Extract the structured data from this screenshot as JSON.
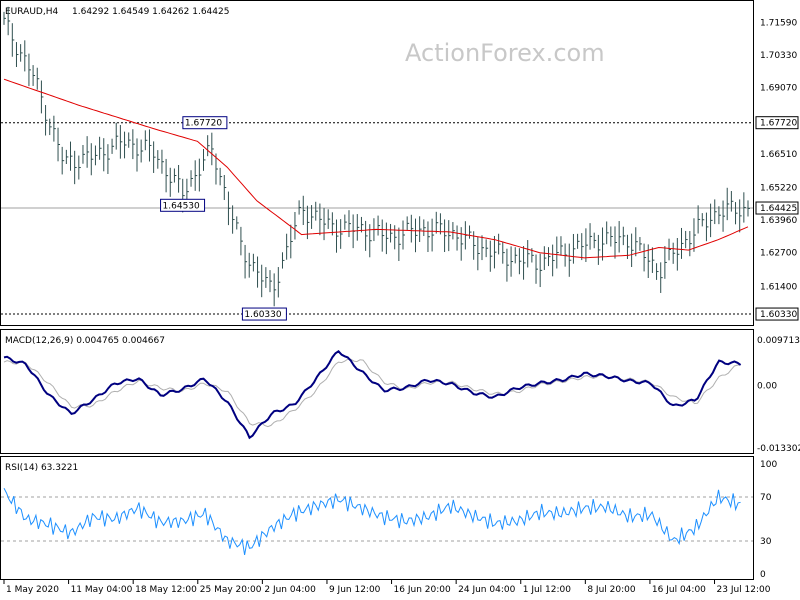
{
  "header": {
    "symbol": "EURAUD,H4",
    "ohlc": "1.64292 1.64549 1.64262 1.64425",
    "watermark": "ActionForex.com"
  },
  "chart_data": [
    {
      "type": "line",
      "title": "EURAUD,H4 1.64292 1.64549 1.64262 1.64425",
      "ylim": [
        1.601,
        1.7215
      ],
      "x_tick_labels": [
        "1 May 2020",
        "11 May 04:00",
        "18 May 12:00",
        "25 May 20:00",
        "2 Jun 04:00",
        "9 Jun 12:00",
        "16 Jun 20:00",
        "24 Jun 04:00",
        "1 Jul 12:00",
        "8 Jul 20:00",
        "16 Jul 04:00",
        "23 Jul 12:00"
      ],
      "y_tick_labels": [
        "1.71590",
        "1.70330",
        "1.69070",
        "1.67720",
        "1.66510",
        "1.65220",
        "1.64425",
        "1.63960",
        "1.62700",
        "1.61400",
        "1.60330",
        "1.60330"
      ],
      "current_price": 1.64425,
      "current_price_label": "1.64425",
      "horizontal_levels": [
        1.6772,
        1.6033
      ],
      "annotations": [
        {
          "text": "1.67720",
          "x": 0.27,
          "y": 1.6772
        },
        {
          "text": "1.64530",
          "x": 0.24,
          "y": 1.6453
        },
        {
          "text": "1.60330",
          "x": 0.35,
          "y": 1.6033
        }
      ],
      "series": [
        {
          "type": "bar",
          "x": [
            0,
            0.04,
            0.08,
            0.12,
            0.16,
            0.2,
            0.24,
            0.28,
            0.32,
            0.36,
            0.4,
            0.44,
            0.48,
            0.52,
            0.56,
            0.6,
            0.64,
            0.68,
            0.72,
            0.76,
            0.8,
            0.84,
            0.88,
            0.92,
            0.96,
            1.0
          ],
          "values": [
            1.716,
            1.695,
            1.662,
            1.664,
            1.67,
            1.666,
            1.65,
            1.667,
            1.628,
            1.612,
            1.644,
            1.637,
            1.636,
            1.633,
            1.636,
            1.635,
            1.629,
            1.625,
            1.623,
            1.628,
            1.632,
            1.632,
            1.62,
            1.633,
            1.643,
            1.644
          ]
        },
        {
          "name": "MA",
          "x": [
            0,
            0.1,
            0.2,
            0.26,
            0.3,
            0.34,
            0.4,
            0.5,
            0.6,
            0.66,
            0.72,
            0.78,
            0.84,
            0.88,
            0.92,
            0.96,
            1.0
          ],
          "values": [
            1.694,
            1.684,
            1.675,
            1.67,
            1.66,
            1.647,
            1.634,
            1.636,
            1.635,
            1.632,
            1.627,
            1.625,
            1.626,
            1.629,
            1.628,
            1.632,
            1.637
          ]
        }
      ]
    },
    {
      "type": "line",
      "title": "MACD(12,26,9) 0.004765 0.004667",
      "ylim": [
        -0.013302,
        0.009713
      ],
      "y_tick_labels": [
        "0.009713",
        "0.00",
        "-0.013302"
      ],
      "series": [
        {
          "name": "MACD",
          "x": [
            0,
            0.03,
            0.06,
            0.09,
            0.12,
            0.15,
            0.18,
            0.21,
            0.24,
            0.27,
            0.3,
            0.33,
            0.36,
            0.39,
            0.42,
            0.45,
            0.48,
            0.51,
            0.54,
            0.57,
            0.6,
            0.63,
            0.66,
            0.69,
            0.72,
            0.75,
            0.78,
            0.81,
            0.84,
            0.87,
            0.9,
            0.93,
            0.96,
            0.99
          ],
          "values": [
            0.006,
            0.0045,
            -0.002,
            -0.006,
            -0.003,
            0.0005,
            0.0015,
            -0.002,
            -0.0008,
            0.0015,
            -0.0035,
            -0.011,
            -0.006,
            -0.004,
            0.0015,
            0.0075,
            0.003,
            -0.001,
            -0.0005,
            0.0012,
            0.0004,
            -0.0015,
            -0.0025,
            -0.0005,
            0.0005,
            0.0012,
            0.0025,
            0.002,
            0.001,
            0.0005,
            -0.0045,
            -0.003,
            0.005,
            0.0047
          ]
        },
        {
          "name": "Signal",
          "x": [
            0,
            0.03,
            0.06,
            0.09,
            0.12,
            0.15,
            0.18,
            0.21,
            0.24,
            0.27,
            0.3,
            0.33,
            0.36,
            0.39,
            0.42,
            0.45,
            0.48,
            0.51,
            0.54,
            0.57,
            0.6,
            0.63,
            0.66,
            0.69,
            0.72,
            0.75,
            0.78,
            0.81,
            0.84,
            0.87,
            0.9,
            0.93,
            0.96,
            0.99
          ],
          "values": [
            0.005,
            0.0048,
            0.0005,
            -0.0045,
            -0.0042,
            -0.0012,
            0.001,
            -0.0005,
            -0.0012,
            0.0005,
            -0.0012,
            -0.008,
            -0.0085,
            -0.0052,
            -0.001,
            0.0052,
            0.0055,
            0.0008,
            -0.0008,
            0.0006,
            0.0007,
            -0.0007,
            -0.0018,
            -0.0013,
            0.0002,
            0.0009,
            0.0018,
            0.002,
            0.0013,
            0.0007,
            -0.0025,
            -0.0038,
            0.0015,
            0.0047
          ]
        }
      ]
    },
    {
      "type": "line",
      "title": "RSI(14) 63.3221",
      "ylim": [
        0,
        100
      ],
      "y_tick_labels": [
        "100",
        "70",
        "30",
        "0"
      ],
      "levels": [
        70,
        30
      ],
      "series": [
        {
          "name": "RSI",
          "x": [
            0,
            0.03,
            0.06,
            0.09,
            0.12,
            0.15,
            0.18,
            0.21,
            0.24,
            0.27,
            0.3,
            0.33,
            0.36,
            0.39,
            0.42,
            0.45,
            0.48,
            0.51,
            0.54,
            0.57,
            0.6,
            0.63,
            0.66,
            0.69,
            0.72,
            0.75,
            0.78,
            0.81,
            0.84,
            0.87,
            0.9,
            0.93,
            0.96,
            0.99
          ],
          "values": [
            75,
            50,
            45,
            37,
            52,
            50,
            60,
            47,
            48,
            55,
            30,
            24,
            42,
            55,
            62,
            68,
            60,
            52,
            48,
            52,
            62,
            53,
            46,
            48,
            56,
            55,
            60,
            61,
            52,
            54,
            30,
            42,
            70,
            63
          ]
        }
      ]
    }
  ]
}
